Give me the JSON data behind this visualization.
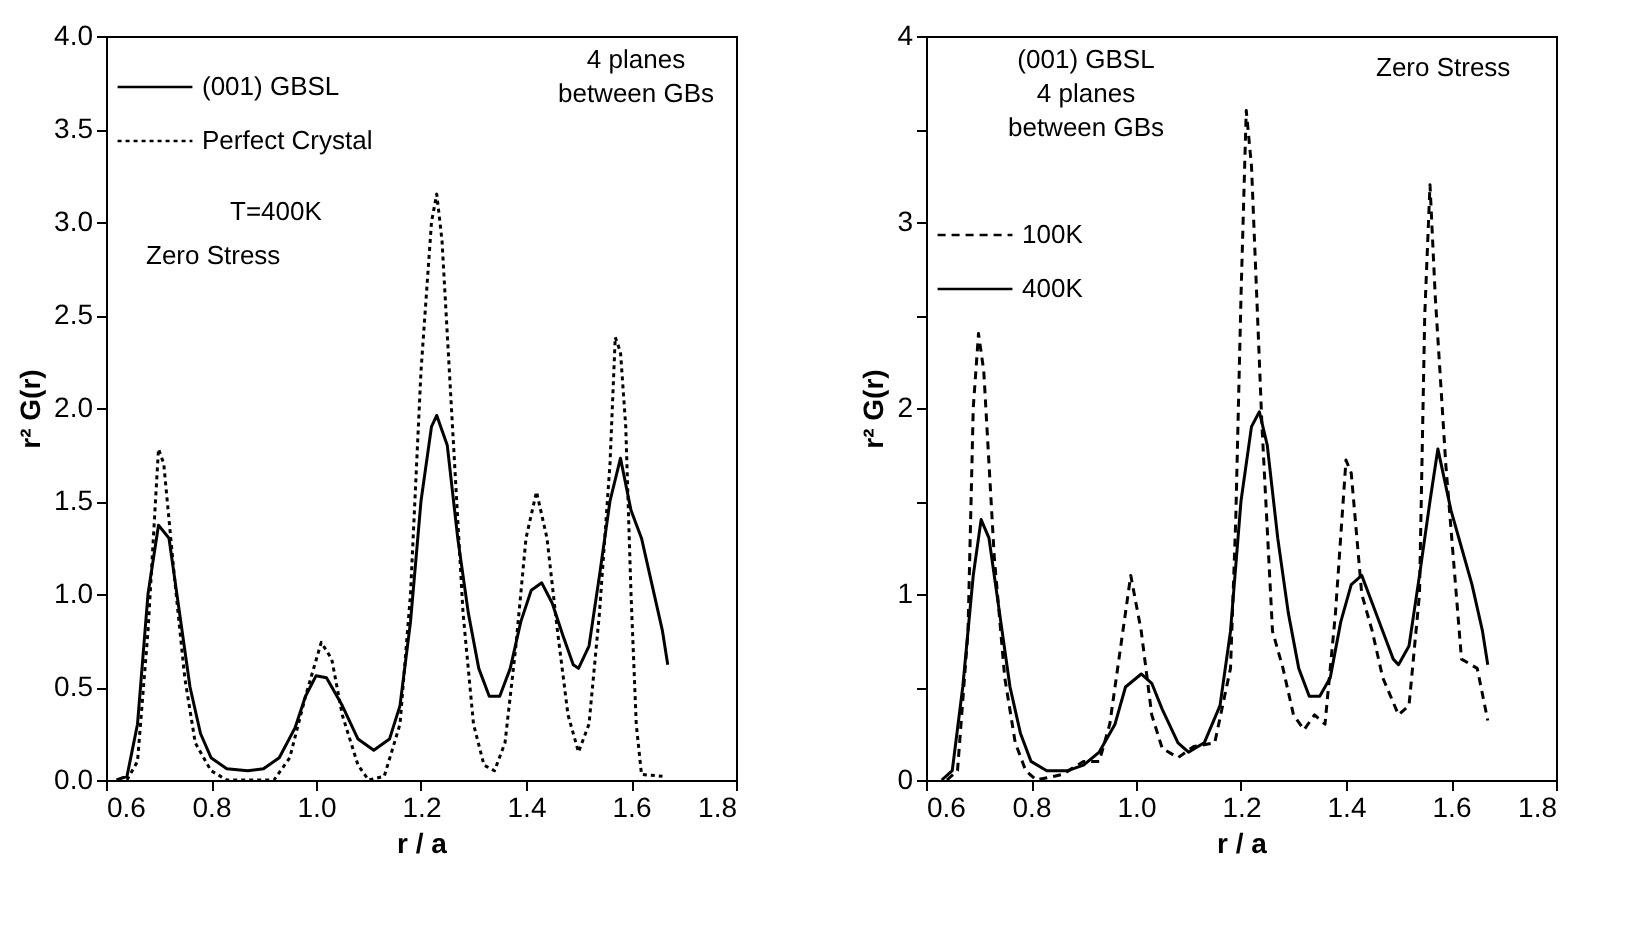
{
  "chart_data": [
    {
      "type": "line",
      "xlabel": "r / a",
      "ylabel": "r² G(r)",
      "xlim": [
        0.6,
        1.8
      ],
      "ylim": [
        0,
        4
      ],
      "xticks": [
        {
          "value": 0.6,
          "label": "0.6"
        },
        {
          "value": 0.8,
          "label": "0.8"
        },
        {
          "value": 1,
          "label": "1.0"
        },
        {
          "value": 1.2,
          "label": "1.2"
        },
        {
          "value": 1.4,
          "label": "1.4"
        },
        {
          "value": 1.6,
          "label": "1.6"
        },
        {
          "value": 1.8,
          "label": "1.8"
        }
      ],
      "yticks": [
        {
          "value": 0,
          "label": "0.0"
        },
        {
          "value": 0.5,
          "label": "0.5"
        },
        {
          "value": 1,
          "label": "1.0"
        },
        {
          "value": 1.5,
          "label": "1.5"
        },
        {
          "value": 2,
          "label": "2.0"
        },
        {
          "value": 2.5,
          "label": "2.5"
        },
        {
          "value": 3,
          "label": "3.0"
        },
        {
          "value": 3.5,
          "label": "3.5"
        },
        {
          "value": 4,
          "label": "4.0"
        }
      ],
      "grid": false,
      "legend": "top left",
      "marker": "none",
      "annotations": [
        "4 planes\nbetween GBs",
        "T=400K",
        "Zero   Stress"
      ],
      "series": [
        {
          "name": "(001) GBSL",
          "color": "#000000",
          "line_style": "solid",
          "x": [
            0.62,
            0.64,
            0.66,
            0.68,
            0.7,
            0.72,
            0.74,
            0.76,
            0.78,
            0.8,
            0.83,
            0.87,
            0.9,
            0.93,
            0.96,
            0.98,
            1.0,
            1.02,
            1.05,
            1.08,
            1.11,
            1.14,
            1.16,
            1.18,
            1.2,
            1.22,
            1.23,
            1.25,
            1.27,
            1.29,
            1.31,
            1.33,
            1.35,
            1.37,
            1.39,
            1.41,
            1.43,
            1.45,
            1.47,
            1.49,
            1.5,
            1.52,
            1.54,
            1.56,
            1.58,
            1.6,
            1.62,
            1.64,
            1.66,
            1.67
          ],
          "values": [
            0,
            0.02,
            0.3,
            1.0,
            1.37,
            1.3,
            0.9,
            0.5,
            0.25,
            0.12,
            0.06,
            0.05,
            0.06,
            0.12,
            0.28,
            0.45,
            0.56,
            0.55,
            0.4,
            0.22,
            0.16,
            0.22,
            0.4,
            0.85,
            1.5,
            1.9,
            1.96,
            1.8,
            1.3,
            0.9,
            0.6,
            0.45,
            0.45,
            0.6,
            0.85,
            1.02,
            1.06,
            0.95,
            0.78,
            0.62,
            0.6,
            0.72,
            1.1,
            1.5,
            1.73,
            1.45,
            1.3,
            1.05,
            0.8,
            0.62
          ]
        },
        {
          "name": "Perfect Crystal",
          "color": "#000000",
          "line_style": "dotted",
          "x": [
            0.64,
            0.66,
            0.68,
            0.7,
            0.71,
            0.73,
            0.75,
            0.77,
            0.8,
            0.83,
            0.92,
            0.95,
            0.98,
            1.01,
            1.03,
            1.05,
            1.08,
            1.1,
            1.13,
            1.16,
            1.18,
            1.2,
            1.22,
            1.23,
            1.24,
            1.26,
            1.28,
            1.3,
            1.32,
            1.34,
            1.36,
            1.38,
            1.4,
            1.42,
            1.44,
            1.46,
            1.48,
            1.5,
            1.52,
            1.54,
            1.56,
            1.57,
            1.58,
            1.59,
            1.6,
            1.61,
            1.62,
            1.66
          ],
          "values": [
            0,
            0.1,
            0.8,
            1.78,
            1.7,
            1.1,
            0.55,
            0.2,
            0.05,
            0,
            0,
            0.12,
            0.45,
            0.74,
            0.65,
            0.35,
            0.08,
            0,
            0.02,
            0.3,
            1.0,
            2.2,
            3.0,
            3.15,
            2.9,
            1.9,
            0.9,
            0.3,
            0.08,
            0.05,
            0.2,
            0.7,
            1.3,
            1.55,
            1.3,
            0.8,
            0.35,
            0.15,
            0.3,
            0.9,
            1.7,
            2.38,
            2.3,
            1.9,
            1.0,
            0.3,
            0.03,
            0.02
          ]
        }
      ]
    },
    {
      "type": "line",
      "xlabel": "r / a",
      "ylabel": "r² G(r)",
      "xlim": [
        0.6,
        1.8
      ],
      "ylim": [
        0,
        4
      ],
      "xticks": [
        {
          "value": 0.6,
          "label": "0.6"
        },
        {
          "value": 0.8,
          "label": "0.8"
        },
        {
          "value": 1,
          "label": "1.0"
        },
        {
          "value": 1.2,
          "label": "1.2"
        },
        {
          "value": 1.4,
          "label": "1.4"
        },
        {
          "value": 1.6,
          "label": "1.6"
        },
        {
          "value": 1.8,
          "label": "1.8"
        }
      ],
      "yticks": [
        0,
        {
          "value": 0.5,
          "label": null
        },
        1,
        {
          "value": 1.5,
          "label": null
        },
        2,
        {
          "value": 2.5,
          "label": null
        },
        3,
        {
          "value": 3.5,
          "label": null
        },
        4
      ],
      "grid": false,
      "legend": "top left",
      "marker": "none",
      "annotations": [
        "(001)  GBSL\n4 planes\nbetween  GBs",
        "Zero   Stress"
      ],
      "series": [
        {
          "name": "100K",
          "color": "#000000",
          "line_style": "dashed",
          "x": [
            0.64,
            0.66,
            0.68,
            0.69,
            0.7,
            0.71,
            0.73,
            0.75,
            0.77,
            0.79,
            0.81,
            0.86,
            0.9,
            0.93,
            0.95,
            0.97,
            0.99,
            1.01,
            1.03,
            1.05,
            1.08,
            1.11,
            1.15,
            1.18,
            1.19,
            1.2,
            1.21,
            1.22,
            1.24,
            1.26,
            1.28,
            1.3,
            1.32,
            1.34,
            1.36,
            1.38,
            1.4,
            1.41,
            1.43,
            1.45,
            1.47,
            1.5,
            1.52,
            1.54,
            1.55,
            1.56,
            1.57,
            1.59,
            1.61,
            1.62,
            1.65,
            1.67
          ],
          "values": [
            0,
            0.05,
            0.8,
            2.0,
            2.4,
            2.2,
            1.2,
            0.55,
            0.2,
            0.05,
            0,
            0.03,
            0.1,
            0.1,
            0.3,
            0.7,
            1.1,
            0.8,
            0.35,
            0.17,
            0.12,
            0.18,
            0.2,
            0.6,
            1.4,
            2.6,
            3.6,
            3.3,
            1.9,
            0.8,
            0.6,
            0.35,
            0.27,
            0.35,
            0.3,
            0.9,
            1.72,
            1.65,
            1.0,
            0.8,
            0.55,
            0.35,
            0.4,
            1.0,
            2.5,
            3.2,
            2.6,
            1.7,
            1.0,
            0.65,
            0.6,
            0.32
          ]
        },
        {
          "name": "400K",
          "color": "#000000",
          "line_style": "solid",
          "x": [
            0.63,
            0.65,
            0.67,
            0.69,
            0.705,
            0.72,
            0.74,
            0.76,
            0.78,
            0.8,
            0.83,
            0.87,
            0.9,
            0.93,
            0.96,
            0.98,
            1.01,
            1.03,
            1.05,
            1.08,
            1.1,
            1.13,
            1.16,
            1.18,
            1.2,
            1.22,
            1.235,
            1.25,
            1.27,
            1.29,
            1.31,
            1.33,
            1.35,
            1.37,
            1.39,
            1.41,
            1.43,
            1.45,
            1.47,
            1.49,
            1.5,
            1.52,
            1.54,
            1.56,
            1.575,
            1.6,
            1.62,
            1.64,
            1.66,
            1.67
          ],
          "values": [
            0,
            0.05,
            0.5,
            1.1,
            1.4,
            1.3,
            0.9,
            0.5,
            0.25,
            0.1,
            0.05,
            0.05,
            0.08,
            0.15,
            0.3,
            0.5,
            0.57,
            0.52,
            0.38,
            0.2,
            0.15,
            0.2,
            0.4,
            0.8,
            1.5,
            1.9,
            1.98,
            1.8,
            1.3,
            0.9,
            0.6,
            0.45,
            0.45,
            0.55,
            0.85,
            1.05,
            1.1,
            0.95,
            0.8,
            0.65,
            0.62,
            0.72,
            1.1,
            1.5,
            1.78,
            1.45,
            1.25,
            1.05,
            0.8,
            0.62
          ]
        }
      ]
    }
  ]
}
